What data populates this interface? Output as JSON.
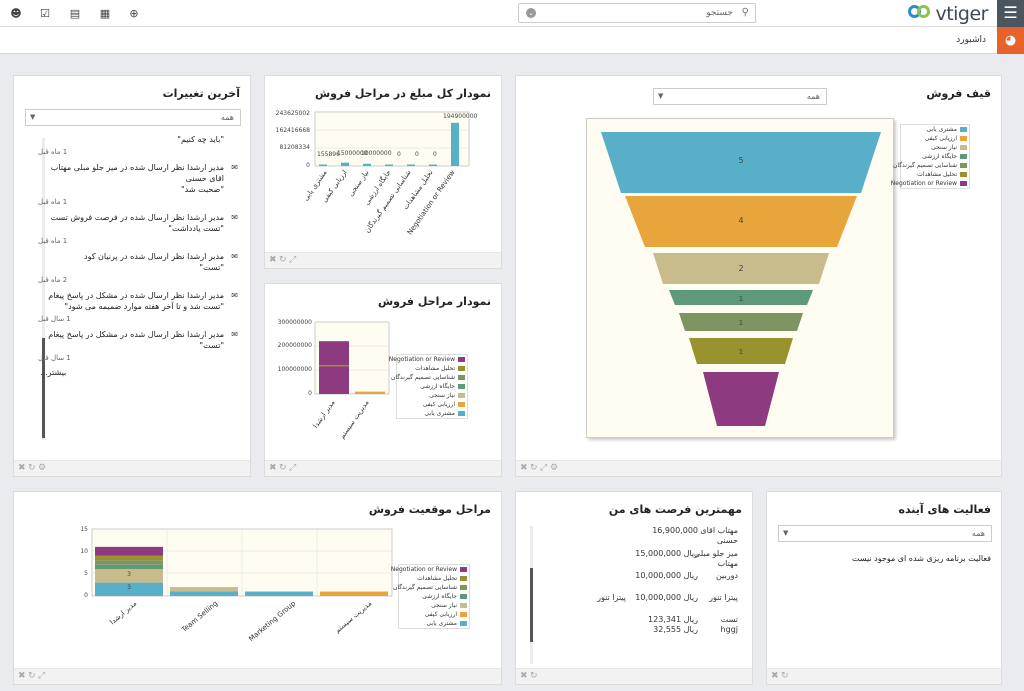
{
  "header": {
    "logo_text": "vtiger",
    "search_placeholder": "جستجو",
    "breadcrumb": "داشبورد"
  },
  "colors": {
    "s1": "#57b0c8",
    "s2": "#e8a53b",
    "s3": "#c8bc8d",
    "s4": "#5e9a7a",
    "s5": "#7e9461",
    "s6": "#98922f",
    "s7": "#8e3a80"
  },
  "legend": [
    "مشتری یابی",
    "ارزیابی کیفی",
    "نیاز سنجی",
    "جایگاه ارزشی",
    "شناسایی تصمیم گیرندگان",
    "تحلیل مشاهدات",
    "Negotiation or Review"
  ],
  "widgets": {
    "funnel": {
      "title": "قیف فروش",
      "filter": "همه",
      "labels": [
        "5",
        "4",
        "2",
        "1",
        "1",
        "1",
        ""
      ]
    },
    "total": {
      "title": "نمودار کل مبلغ در مراحل فروش",
      "ylabels": [
        "243625002",
        "162416668",
        "81208334",
        "0"
      ],
      "bar_labels": [
        "155896",
        "15000000",
        "10000000",
        "0",
        "0",
        "0",
        "194900000"
      ],
      "x_labels": [
        "مشتری یابی",
        "ارزیابی کیفی",
        "نیاز سنجی",
        "جایگاه ارزشی",
        "شناسایی تصمیم گیرندگان",
        "تحلیل مشاهدات",
        "Negotiation or Review"
      ]
    },
    "stages": {
      "title": "نمودار مراحل فروش",
      "ylabels": [
        "300000000",
        "200000000",
        "100000000",
        "0"
      ],
      "x_labels": [
        "مدیر ارشدا",
        "مدیریت سیستم"
      ]
    },
    "feed": {
      "title": "آخرین تغییرات",
      "filter": "همه",
      "more": "بیشتر...",
      "items": [
        {
          "text": "",
          "quote": "\"باید چه کنیم\"",
          "time": "1 ماه قبل"
        },
        {
          "text": "مدیر ارشدا نظر ارسال شده در میز جلو مبلی مهتاب اقای حسنی",
          "quote": "\"صحبت شد\"",
          "time": "1 ماه قبل"
        },
        {
          "text": "مدیر ارشدا نظر ارسال شده در فرصت فروش تست",
          "quote": "\"تست یادداشت\"",
          "time": "1 ماه قبل"
        },
        {
          "text": "مدیر ارشدا نظر ارسال شده در پرنیان کود",
          "quote": "\"تست\"",
          "time": "2 ماه قبل"
        },
        {
          "text": "مدیر ارشدا نظر ارسال شده در مشکل در پاسخ پیغام",
          "quote": "\"تست شد و تا آخر هفته موارد ضمیمه می شود\"",
          "time": "1 سال قبل"
        },
        {
          "text": "مدیر ارشدا نظر ارسال شده در مشکل در پاسخ پیغام",
          "quote": "\"تست\"",
          "time": "1 سال قبل"
        }
      ]
    },
    "position": {
      "title": "مراحل موقعیت فروش",
      "ylabels": [
        "15",
        "10",
        "5",
        "0"
      ],
      "x_labels": [
        "مدیر ارشدا",
        "Team Selling",
        "Marketing Group",
        "مدیریت سیستم"
      ],
      "seg_labels": [
        "3",
        "3"
      ]
    },
    "top_opps": {
      "title": "مهمترین فرصت های من",
      "rows": [
        {
          "name": "مهتاب اقای حسنی",
          "amount": "16,900,000",
          "org": ""
        },
        {
          "name": "میز جلو مبلی مهتاب",
          "amount": "ریال 15,000,000",
          "org": ""
        },
        {
          "name": "دوربین",
          "amount": "ریال 10,000,000",
          "org": ""
        },
        {
          "name": "پیتزا تنور",
          "amount": "ریال 10,000,000",
          "org": "پیتزا تنور"
        },
        {
          "name": "تست",
          "amount": "ریال 123,341",
          "org": ""
        },
        {
          "name": "hggj",
          "amount": "ریال 32,555",
          "org": ""
        }
      ]
    },
    "upcoming": {
      "title": "فعالیت های آینده",
      "filter": "همه",
      "empty": "فعالیت برنامه ریزی شده ای موجود نیست"
    }
  },
  "chart_data": [
    {
      "type": "funnel",
      "title": "قیف فروش",
      "categories": [
        "مشتری یابی",
        "ارزیابی کیفی",
        "نیاز سنجی",
        "جایگاه ارزشی",
        "شناسایی تصمیم گیرندگان",
        "تحلیل مشاهدات",
        "Negotiation or Review"
      ],
      "values": [
        5,
        4,
        2,
        1,
        1,
        1,
        1
      ]
    },
    {
      "type": "bar",
      "title": "نمودار کل مبلغ در مراحل فروش",
      "categories": [
        "مشتری یابی",
        "ارزیابی کیفی",
        "نیاز سنجی",
        "جایگاه ارزشی",
        "شناسایی تصمیم گیرندگان",
        "تحلیل مشاهدات",
        "Negotiation or Review"
      ],
      "values": [
        155896,
        15000000,
        10000000,
        0,
        0,
        0,
        194900000
      ],
      "ylim": [
        0,
        243625002
      ]
    },
    {
      "type": "bar",
      "title": "نمودار مراحل فروش",
      "categories": [
        "مدیر ارشدا",
        "مدیریت سیستم"
      ],
      "values": [
        220000000,
        10000000
      ],
      "ylim": [
        0,
        300000000
      ]
    },
    {
      "type": "bar",
      "title": "مراحل موقعیت فروش",
      "categories": [
        "مدیر ارشدا",
        "Team Selling",
        "Marketing Group",
        "مدیریت سیستم"
      ],
      "series": [
        {
          "name": "مشتری یابی",
          "values": [
            3,
            1,
            1,
            0
          ]
        },
        {
          "name": "ارزیابی کیفی",
          "values": [
            0,
            0,
            0,
            1
          ]
        },
        {
          "name": "نیاز سنجی",
          "values": [
            3,
            1,
            0,
            0
          ]
        },
        {
          "name": "جایگاه ارزشی",
          "values": [
            1,
            0,
            0,
            0
          ]
        },
        {
          "name": "شناسایی تصمیم گیرندگان",
          "values": [
            1,
            0,
            0,
            0
          ]
        },
        {
          "name": "تحلیل مشاهدات",
          "values": [
            1,
            0,
            0,
            0
          ]
        },
        {
          "name": "Negotiation or Review",
          "values": [
            2,
            0,
            0,
            0
          ]
        }
      ],
      "ylim": [
        0,
        15
      ]
    }
  ]
}
